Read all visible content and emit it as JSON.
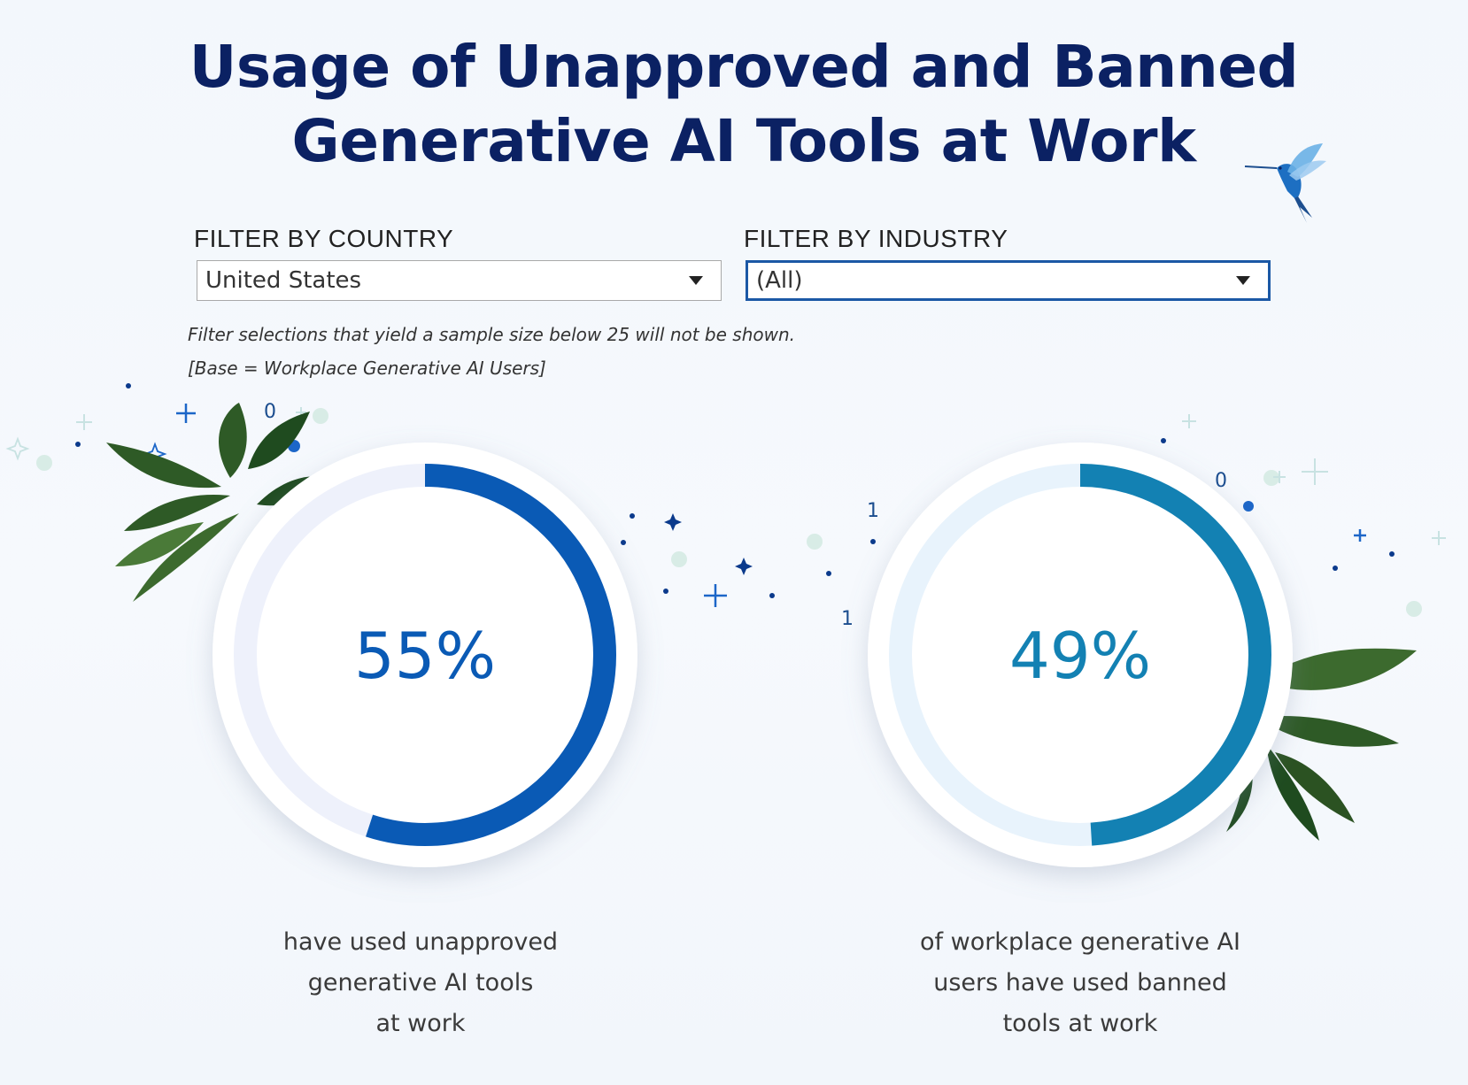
{
  "title_line1": "Usage of Unapproved and Banned",
  "title_line2": "Generative AI Tools at Work",
  "filters": {
    "country": {
      "label": "FILTER BY COUNTRY",
      "value": "United States"
    },
    "industry": {
      "label": "FILTER BY INDUSTRY",
      "value": "(All)"
    }
  },
  "notes": {
    "sample_size": "Filter selections that yield a sample size below 25 will not be shown.",
    "base": "[Base =  Workplace Generative AI Users]"
  },
  "kpis": [
    {
      "value": 55,
      "value_label": "55%",
      "color": "#0a5ab5",
      "track_color": "#eef1fb",
      "lines": [
        "have used unapproved",
        "generative AI tools",
        "at work"
      ]
    },
    {
      "value": 49,
      "value_label": "49%",
      "color": "#1381b3",
      "track_color": "#e8f3fc",
      "lines": [
        "of workplace generative AI",
        "users have used banned",
        "tools at work"
      ]
    }
  ],
  "decor": {
    "bits": [
      "0",
      "1",
      "1",
      "0"
    ]
  },
  "colors": {
    "title": "#0b2163",
    "select_border_active": "#1b58a5"
  },
  "icons": [
    "hummingbird-icon",
    "leaf-cluster-icon",
    "dropdown-arrow-icon"
  ]
}
